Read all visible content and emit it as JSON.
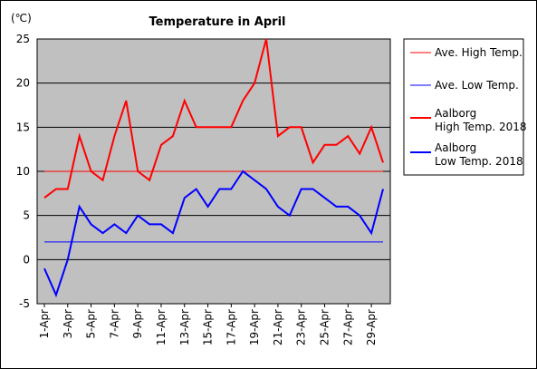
{
  "chart_data": {
    "type": "line",
    "title": "Temperature in April",
    "unit_label": "(℃)",
    "ylim": [
      -5,
      25
    ],
    "y_ticks": [
      "25",
      "20",
      "15",
      "10",
      "5",
      "0",
      "-5"
    ],
    "x_tick_labels": [
      "1-Apr",
      "3-Apr",
      "5-Apr",
      "7-Apr",
      "9-Apr",
      "11-Apr",
      "13-Apr",
      "15-Apr",
      "17-Apr",
      "19-Apr",
      "21-Apr",
      "23-Apr",
      "25-Apr",
      "27-Apr",
      "29-Apr"
    ],
    "x": [
      1,
      2,
      3,
      4,
      5,
      6,
      7,
      8,
      9,
      10,
      11,
      12,
      13,
      14,
      15,
      16,
      17,
      18,
      19,
      20,
      21,
      22,
      23,
      24,
      25,
      26,
      27,
      28,
      29,
      30
    ],
    "plot_background": "#c0c0c0",
    "grid": "horizontal",
    "legend_position": "right",
    "series": [
      {
        "name": "Ave. High Temp.",
        "color": "#ff0000",
        "width": "thin",
        "values": [
          10,
          10,
          10,
          10,
          10,
          10,
          10,
          10,
          10,
          10,
          10,
          10,
          10,
          10,
          10,
          10,
          10,
          10,
          10,
          10,
          10,
          10,
          10,
          10,
          10,
          10,
          10,
          10,
          10,
          10
        ]
      },
      {
        "name": "Ave. Low Temp.",
        "color": "#0000ff",
        "width": "thin",
        "values": [
          2,
          2,
          2,
          2,
          2,
          2,
          2,
          2,
          2,
          2,
          2,
          2,
          2,
          2,
          2,
          2,
          2,
          2,
          2,
          2,
          2,
          2,
          2,
          2,
          2,
          2,
          2,
          2,
          2,
          2
        ]
      },
      {
        "name": "Aalborg High Temp. 2018",
        "legend_lines": [
          "Aalborg",
          "High Temp. 2018"
        ],
        "color": "#ff0000",
        "width": "thick",
        "values": [
          7,
          8,
          8,
          14,
          10,
          9,
          14,
          18,
          10,
          9,
          13,
          14,
          18,
          15,
          15,
          15,
          15,
          18,
          20,
          25,
          14,
          15,
          15,
          11,
          13,
          13,
          14,
          12,
          15,
          11
        ]
      },
      {
        "name": "Aalborg Low Temp. 2018",
        "legend_lines": [
          "Aalborg",
          "Low Temp. 2018"
        ],
        "color": "#0000ff",
        "width": "thick",
        "values": [
          -1,
          -4,
          0,
          6,
          4,
          3,
          4,
          3,
          5,
          4,
          4,
          3,
          7,
          8,
          6,
          8,
          8,
          10,
          9,
          8,
          6,
          5,
          8,
          8,
          7,
          6,
          6,
          5,
          3,
          8
        ]
      }
    ]
  }
}
